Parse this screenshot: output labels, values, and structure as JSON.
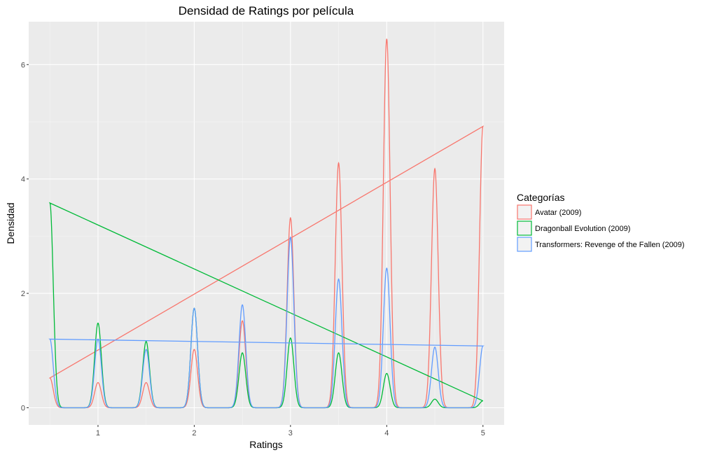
{
  "chart_data": {
    "type": "area",
    "title": "Densidad de Ratings por película",
    "xlabel": "Ratings",
    "ylabel": "Densidad",
    "xlim": [
      0.28,
      5.22
    ],
    "ylim": [
      -0.3,
      6.75
    ],
    "x_ticks": [
      1,
      2,
      3,
      4,
      5
    ],
    "x_tick_labels": [
      "1",
      "2",
      "3",
      "4",
      "5"
    ],
    "y_ticks": [
      0,
      2,
      4,
      6
    ],
    "y_tick_labels": [
      "0",
      "2",
      "4",
      "6"
    ],
    "grid": true,
    "legend_title": "Categorías",
    "legend_position": "right",
    "background": "#ebebeb",
    "peak_width": 0.035,
    "x_domain": [
      0.5,
      5.0
    ],
    "x": [
      0.5,
      1.0,
      1.5,
      2.0,
      2.5,
      3.0,
      3.5,
      4.0,
      4.5,
      5.0
    ],
    "series": [
      {
        "name": "Avatar (2009)",
        "color": "#F8766D",
        "values": [
          0.52,
          0.44,
          0.44,
          1.02,
          1.52,
          3.32,
          4.28,
          6.45,
          4.18,
          4.92
        ]
      },
      {
        "name": "Dragonball Evolution (2009)",
        "color": "#00BA38",
        "values": [
          3.58,
          1.48,
          1.16,
          1.74,
          0.96,
          1.22,
          0.96,
          0.6,
          0.15,
          0.12
        ]
      },
      {
        "name": "Transformers: Revenge of the Fallen (2009)",
        "color": "#619CFF",
        "values": [
          1.2,
          1.2,
          1.02,
          1.74,
          1.8,
          2.98,
          2.25,
          2.44,
          1.06,
          1.08
        ]
      }
    ]
  }
}
